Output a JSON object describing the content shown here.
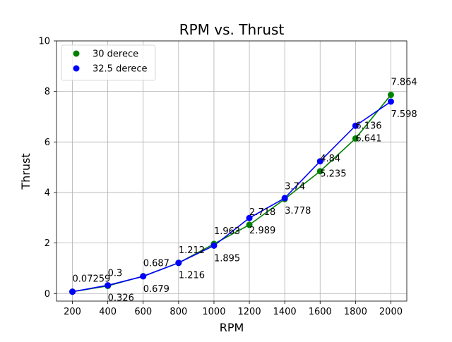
{
  "chart_data": {
    "type": "line",
    "title": "RPM vs. Thrust",
    "xlabel": "RPM",
    "ylabel": "Thrust",
    "xlim": [
      110,
      2090
    ],
    "ylim": [
      -0.3,
      10
    ],
    "xticks": [
      200,
      400,
      600,
      800,
      1000,
      1200,
      1400,
      1600,
      1800,
      2000
    ],
    "yticks": [
      0,
      2,
      4,
      6,
      8,
      10
    ],
    "grid": true,
    "legend_position": "top-left",
    "x": [
      200,
      400,
      600,
      800,
      1000,
      1200,
      1400,
      1600,
      1800,
      2000
    ],
    "series": [
      {
        "name": "30 derece",
        "color": "#008000",
        "values": [
          0.07259,
          0.3,
          0.687,
          1.212,
          1.963,
          2.718,
          3.74,
          4.84,
          6.136,
          7.864
        ],
        "labels": [
          "0.07259",
          "0.3",
          "0.687",
          "1.212",
          "1.963",
          "2.718",
          "3.74",
          "4.84",
          "6.136",
          "7.864"
        ]
      },
      {
        "name": "32.5 derece",
        "color": "#0000ff",
        "values": [
          0.07259,
          0.326,
          0.679,
          1.216,
          1.895,
          2.989,
          3.778,
          5.235,
          6.641,
          7.598
        ],
        "labels": [
          "",
          "0.326",
          "0.679",
          "1.216",
          "1.895",
          "2.989",
          "3.778",
          "5.235",
          "6.641",
          "7.598"
        ]
      }
    ]
  }
}
